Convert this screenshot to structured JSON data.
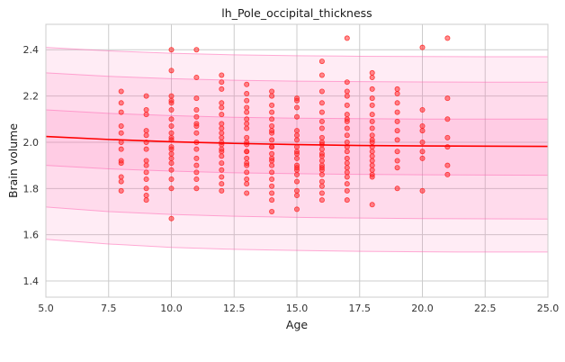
{
  "chart_data": {
    "type": "scatter",
    "title": "lh_Pole_occipital_thickness",
    "xlabel": "Age",
    "ylabel": "Brain volume",
    "xlim": [
      5,
      25
    ],
    "ylim": [
      1.33,
      2.51
    ],
    "x_ticks": [
      "5.0",
      "7.5",
      "10.0",
      "12.5",
      "15.0",
      "17.5",
      "20.0",
      "22.5",
      "25.0"
    ],
    "x_tick_values": [
      5,
      7.5,
      10,
      12.5,
      15,
      17.5,
      20,
      22.5,
      25
    ],
    "y_ticks": [
      "1.4",
      "1.6",
      "1.8",
      "2.0",
      "2.2",
      "2.4"
    ],
    "y_tick_values": [
      1.4,
      1.6,
      1.8,
      2.0,
      2.2,
      2.4
    ],
    "grid": true,
    "colors": {
      "points": "#ff2020",
      "fit_line": "#ff0000",
      "band_fill": "#ff69b4",
      "band_edge": "#ff69b4",
      "grid": "#cccccc",
      "background": "#ffffff"
    },
    "fit_line": {
      "x": [
        5,
        7.5,
        10,
        12.5,
        15,
        17.5,
        20,
        22.5,
        25
      ],
      "y": [
        2.025,
        2.012,
        2.002,
        1.995,
        1.99,
        1.986,
        1.984,
        1.983,
        1.982
      ]
    },
    "bands": [
      {
        "upper": [
          2.41,
          2.395,
          2.385,
          2.378,
          2.374,
          2.372,
          2.371,
          2.37,
          2.37
        ],
        "lower": [
          1.58,
          1.56,
          1.545,
          1.537,
          1.532,
          1.528,
          1.526,
          1.525,
          1.525
        ]
      },
      {
        "upper": [
          2.3,
          2.285,
          2.275,
          2.268,
          2.264,
          2.262,
          2.261,
          2.26,
          2.26
        ],
        "lower": [
          1.72,
          1.7,
          1.688,
          1.68,
          1.675,
          1.672,
          1.67,
          1.669,
          1.668
        ]
      },
      {
        "upper": [
          2.14,
          2.125,
          2.115,
          2.108,
          2.104,
          2.102,
          2.1,
          2.1,
          2.1
        ],
        "lower": [
          1.9,
          1.885,
          1.875,
          1.868,
          1.864,
          1.861,
          1.859,
          1.858,
          1.857
        ]
      }
    ],
    "points": {
      "x": [
        8,
        8,
        8,
        8,
        8,
        8,
        8,
        8,
        8,
        8,
        8,
        8,
        9,
        9,
        9,
        9,
        9,
        9,
        9,
        9,
        9,
        9,
        9,
        9,
        9,
        9,
        10,
        10,
        10,
        10,
        10,
        10,
        10,
        10,
        10,
        10,
        10,
        10,
        10,
        10,
        10,
        10,
        10,
        10,
        10,
        10,
        11,
        11,
        11,
        11,
        11,
        11,
        11,
        11,
        11,
        11,
        11,
        11,
        11,
        11,
        11,
        12,
        12,
        12,
        12,
        12,
        12,
        12,
        12,
        12,
        12,
        12,
        12,
        12,
        12,
        12,
        12,
        12,
        12,
        12,
        12,
        13,
        13,
        13,
        13,
        13,
        13,
        13,
        13,
        13,
        13,
        13,
        13,
        13,
        13,
        13,
        13,
        13,
        13,
        13,
        13,
        14,
        14,
        14,
        14,
        14,
        14,
        14,
        14,
        14,
        14,
        14,
        14,
        14,
        14,
        14,
        14,
        14,
        14,
        14,
        14,
        14,
        15,
        15,
        15,
        15,
        15,
        15,
        15,
        15,
        15,
        15,
        15,
        15,
        15,
        15,
        15,
        15,
        15,
        15,
        15,
        16,
        16,
        16,
        16,
        16,
        16,
        16,
        16,
        16,
        16,
        16,
        16,
        16,
        16,
        16,
        16,
        16,
        16,
        16,
        16,
        16,
        16,
        17,
        17,
        17,
        17,
        17,
        17,
        17,
        17,
        17,
        17,
        17,
        17,
        17,
        17,
        17,
        17,
        17,
        17,
        17,
        17,
        17,
        18,
        18,
        18,
        18,
        18,
        18,
        18,
        18,
        18,
        18,
        18,
        18,
        18,
        18,
        18,
        18,
        18,
        18,
        18,
        18,
        19,
        19,
        19,
        19,
        19,
        19,
        19,
        19,
        19,
        19,
        19,
        20,
        20,
        20,
        20,
        20,
        20,
        20,
        20,
        21,
        21,
        21,
        21,
        21,
        21,
        21
      ],
      "y": [
        2.22,
        2.17,
        2.13,
        2.07,
        2.04,
        2.0,
        1.97,
        1.92,
        1.91,
        1.85,
        1.83,
        1.79,
        2.2,
        2.14,
        2.12,
        2.05,
        2.03,
        2.0,
        1.97,
        1.92,
        1.9,
        1.87,
        1.84,
        1.8,
        1.77,
        1.75,
        2.4,
        2.31,
        2.2,
        2.17,
        2.14,
        2.1,
        2.07,
        2.04,
        2.01,
        1.98,
        1.95,
        1.91,
        1.88,
        1.84,
        1.8,
        1.67,
        1.97,
        2.02,
        1.93,
        2.18,
        2.4,
        2.28,
        2.19,
        2.14,
        2.11,
        2.07,
        2.04,
        2.0,
        1.97,
        1.93,
        1.9,
        1.87,
        1.84,
        1.8,
        2.08,
        2.29,
        2.26,
        2.23,
        2.17,
        2.12,
        2.08,
        2.06,
        2.02,
        1.99,
        1.96,
        1.94,
        1.91,
        1.88,
        1.85,
        1.82,
        1.79,
        2.0,
        1.97,
        2.04,
        2.15,
        2.25,
        2.21,
        2.18,
        2.13,
        2.1,
        2.06,
        2.02,
        1.99,
        1.96,
        1.93,
        1.9,
        1.87,
        1.84,
        1.82,
        1.78,
        2.0,
        1.96,
        2.08,
        2.15,
        1.91,
        2.22,
        2.2,
        2.16,
        2.13,
        2.1,
        2.07,
        2.04,
        2.01,
        1.98,
        1.95,
        1.93,
        1.9,
        1.87,
        1.84,
        1.81,
        1.78,
        1.75,
        1.7,
        1.98,
        1.92,
        2.05,
        2.19,
        2.15,
        2.11,
        2.05,
        2.01,
        1.98,
        1.96,
        1.93,
        1.9,
        1.88,
        1.86,
        1.83,
        1.79,
        1.77,
        1.71,
        2.03,
        1.95,
        2.18,
        1.89,
        2.35,
        2.29,
        2.22,
        2.17,
        2.13,
        2.09,
        2.06,
        2.02,
        1.99,
        1.97,
        1.95,
        1.92,
        1.9,
        1.88,
        1.86,
        1.83,
        1.81,
        1.78,
        1.75,
        2.0,
        1.94,
        1.89,
        2.45,
        2.26,
        2.22,
        2.2,
        2.16,
        2.12,
        2.09,
        2.06,
        2.03,
        2.0,
        1.98,
        1.96,
        1.93,
        1.91,
        1.89,
        1.87,
        1.85,
        1.82,
        1.79,
        1.75,
        2.1,
        2.3,
        2.28,
        2.23,
        2.19,
        2.16,
        2.12,
        2.09,
        2.06,
        2.03,
        2.0,
        1.98,
        1.96,
        1.94,
        1.92,
        1.9,
        1.88,
        1.86,
        1.85,
        1.73,
        2.01,
        2.23,
        2.21,
        2.17,
        2.13,
        2.09,
        2.05,
        2.01,
        1.96,
        1.92,
        1.89,
        1.8,
        2.41,
        2.14,
        2.07,
        2.05,
        2.0,
        1.96,
        1.93,
        1.79,
        2.45,
        2.19,
        2.1,
        2.02,
        1.98,
        1.9,
        1.86
      ]
    }
  }
}
